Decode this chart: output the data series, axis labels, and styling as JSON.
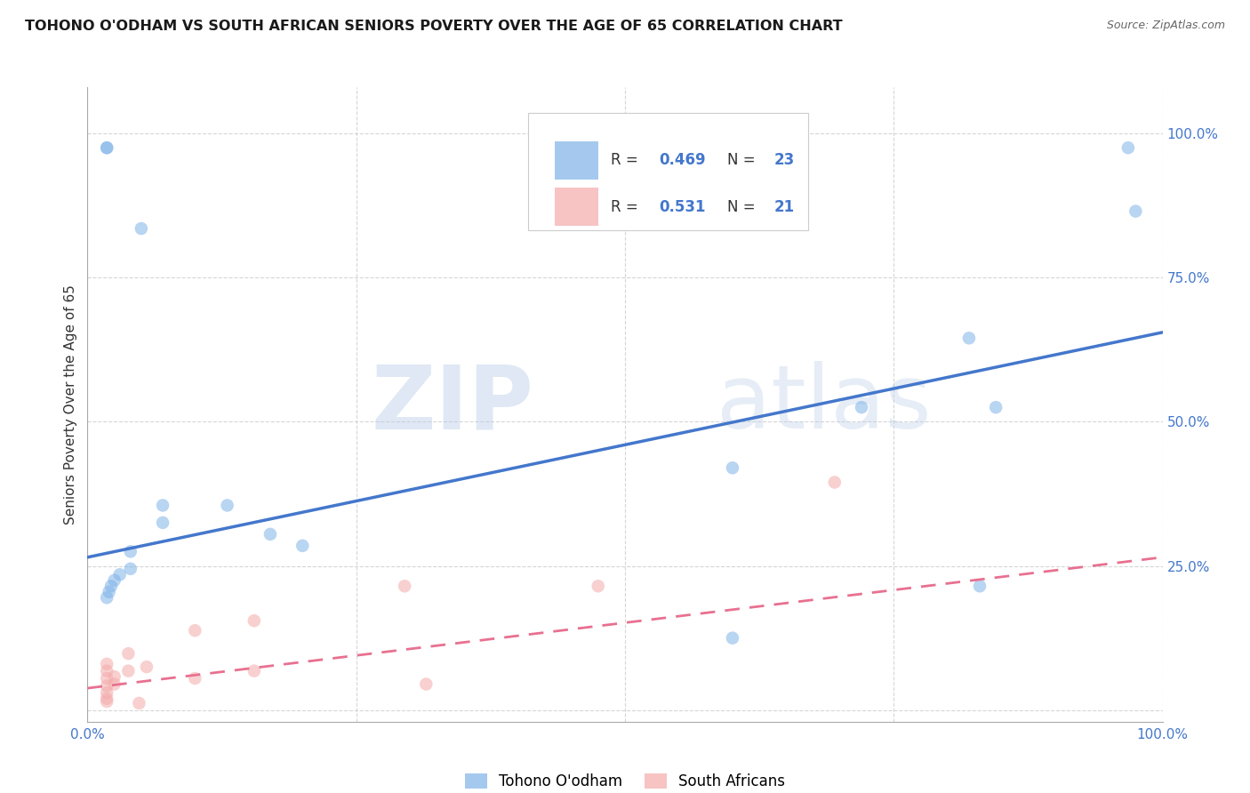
{
  "title": "TOHONO O'ODHAM VS SOUTH AFRICAN SENIORS POVERTY OVER THE AGE OF 65 CORRELATION CHART",
  "source": "Source: ZipAtlas.com",
  "ylabel": "Seniors Poverty Over the Age of 65",
  "xlim": [
    0,
    1.0
  ],
  "ylim": [
    -0.02,
    1.08
  ],
  "xticks": [
    0.0,
    1.0
  ],
  "xticklabels": [
    "0.0%",
    "100.0%"
  ],
  "yticks": [
    0.25,
    0.5,
    0.75,
    1.0
  ],
  "yticklabels": [
    "25.0%",
    "50.0%",
    "75.0%",
    "100.0%"
  ],
  "blue_R": 0.469,
  "blue_N": 23,
  "pink_R": 0.531,
  "pink_N": 21,
  "blue_color": "#7FB3E8",
  "pink_color": "#F4AAAA",
  "blue_line_color": "#4477CC",
  "pink_line_color": "#E87090",
  "watermark_zip": "ZIP",
  "watermark_atlas": "atlas",
  "legend_label_blue": "Tohono O'odham",
  "legend_label_pink": "South Africans",
  "blue_dots": [
    [
      0.018,
      0.975
    ],
    [
      0.05,
      0.835
    ],
    [
      0.968,
      0.975
    ],
    [
      0.975,
      0.865
    ],
    [
      0.82,
      0.645
    ],
    [
      0.72,
      0.525
    ],
    [
      0.845,
      0.525
    ],
    [
      0.6,
      0.42
    ],
    [
      0.83,
      0.215
    ],
    [
      0.6,
      0.125
    ],
    [
      0.07,
      0.355
    ],
    [
      0.07,
      0.325
    ],
    [
      0.04,
      0.275
    ],
    [
      0.04,
      0.245
    ],
    [
      0.03,
      0.235
    ],
    [
      0.025,
      0.225
    ],
    [
      0.022,
      0.215
    ],
    [
      0.02,
      0.205
    ],
    [
      0.018,
      0.195
    ],
    [
      0.17,
      0.305
    ],
    [
      0.2,
      0.285
    ],
    [
      0.13,
      0.355
    ],
    [
      0.018,
      0.975
    ]
  ],
  "pink_dots": [
    [
      0.018,
      0.068
    ],
    [
      0.018,
      0.055
    ],
    [
      0.018,
      0.042
    ],
    [
      0.018,
      0.03
    ],
    [
      0.018,
      0.08
    ],
    [
      0.018,
      0.02
    ],
    [
      0.025,
      0.058
    ],
    [
      0.025,
      0.045
    ],
    [
      0.038,
      0.098
    ],
    [
      0.038,
      0.068
    ],
    [
      0.055,
      0.075
    ],
    [
      0.1,
      0.138
    ],
    [
      0.1,
      0.055
    ],
    [
      0.155,
      0.155
    ],
    [
      0.155,
      0.068
    ],
    [
      0.295,
      0.215
    ],
    [
      0.315,
      0.045
    ],
    [
      0.048,
      0.012
    ],
    [
      0.475,
      0.215
    ],
    [
      0.695,
      0.395
    ],
    [
      0.018,
      0.015
    ]
  ],
  "blue_line_x": [
    0.0,
    1.0
  ],
  "blue_line_y": [
    0.265,
    0.655
  ],
  "pink_line_x": [
    0.0,
    1.0
  ],
  "pink_line_y": [
    0.038,
    0.265
  ],
  "grid_color": "#CCCCCC",
  "grid_linestyle": "--",
  "background_color": "#FFFFFF",
  "title_fontsize": 11.5,
  "axis_label_fontsize": 11,
  "tick_fontsize": 11,
  "dot_size": 110,
  "dot_alpha": 0.55
}
